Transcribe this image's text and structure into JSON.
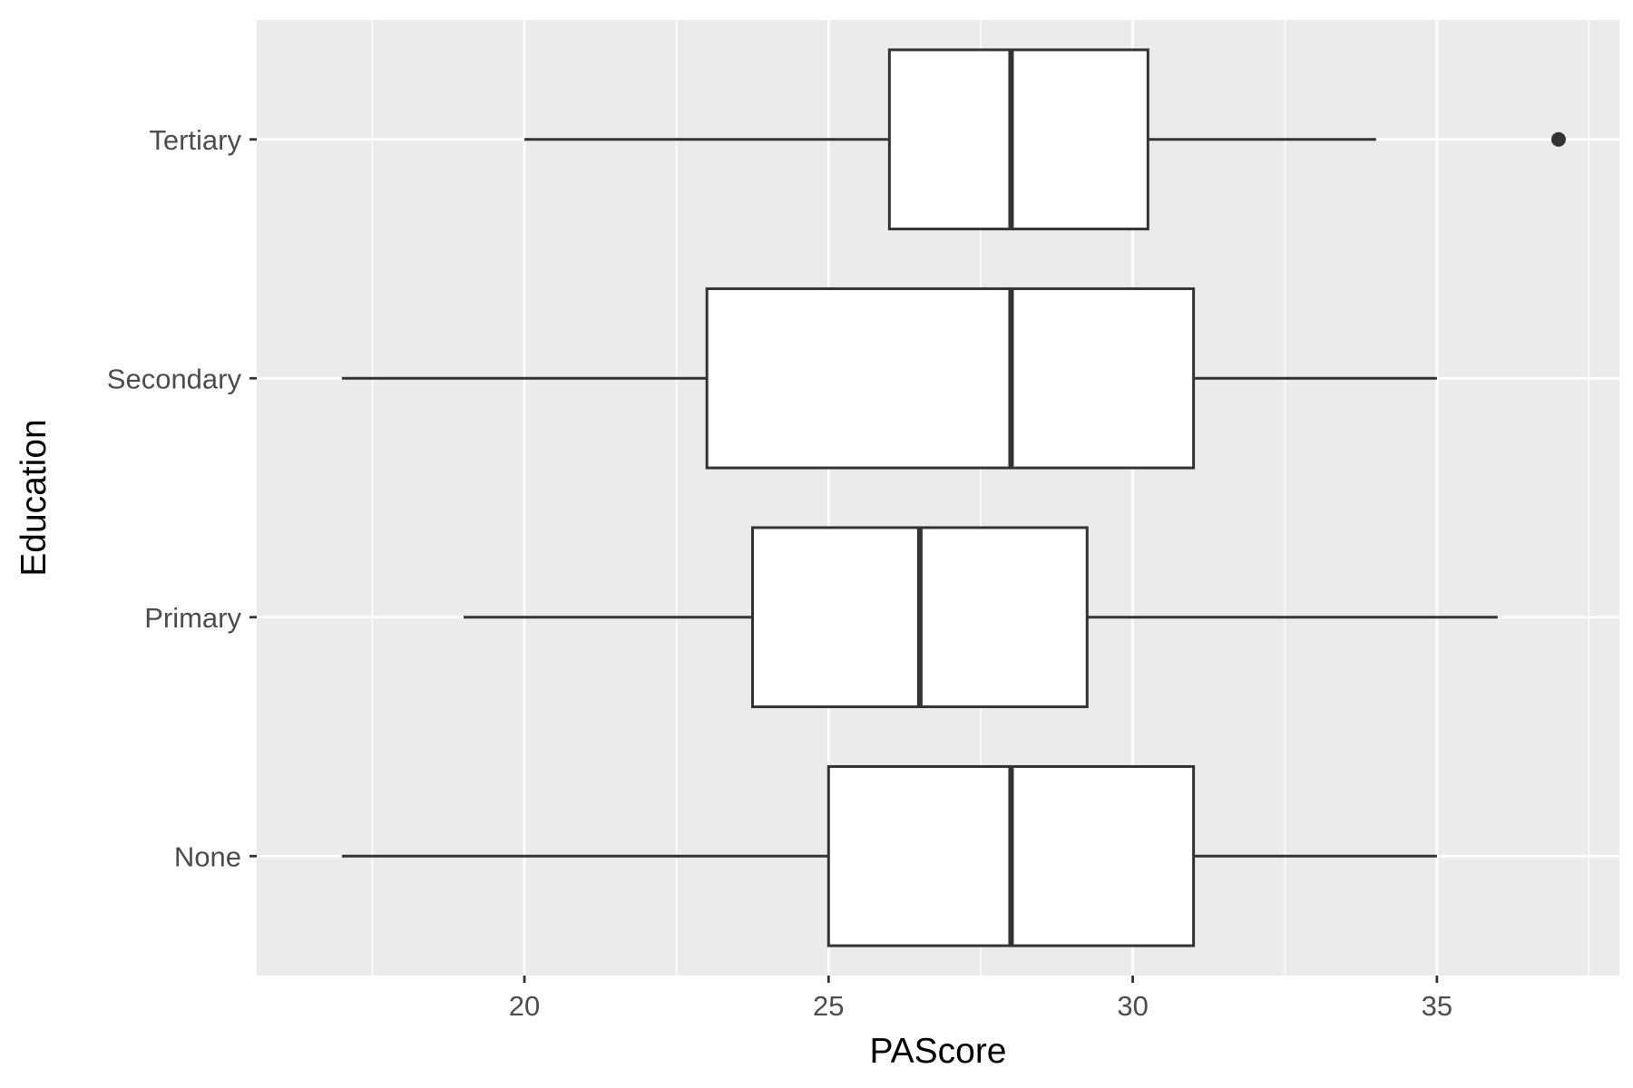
{
  "chart_data": {
    "type": "boxplot",
    "orientation": "horizontal",
    "title": "",
    "xlabel": "PAScore",
    "ylabel": "Education",
    "xlim": [
      15.6,
      38.0
    ],
    "x_ticks": [
      20,
      25,
      30,
      35
    ],
    "x_tick_labels": [
      "20",
      "25",
      "30",
      "35"
    ],
    "x_minor_ticks": [
      17.5,
      22.5,
      27.5,
      32.5,
      37.5
    ],
    "categories": [
      "None",
      "Primary",
      "Secondary",
      "Tertiary"
    ],
    "boxes": [
      {
        "category": "None",
        "whisker_low": 17,
        "q1": 25,
        "median": 28,
        "q3": 31,
        "whisker_high": 35,
        "outliers": []
      },
      {
        "category": "Primary",
        "whisker_low": 19,
        "q1": 23.75,
        "median": 26.5,
        "q3": 29.25,
        "whisker_high": 36,
        "outliers": []
      },
      {
        "category": "Secondary",
        "whisker_low": 17,
        "q1": 23,
        "median": 28,
        "q3": 31,
        "whisker_high": 35,
        "outliers": []
      },
      {
        "category": "Tertiary",
        "whisker_low": 20,
        "q1": 26,
        "median": 28,
        "q3": 30.25,
        "whisker_high": 34,
        "outliers": [
          37
        ]
      }
    ],
    "grid": true,
    "colors": {
      "panel_background": "#ebebeb",
      "grid": "#ffffff",
      "box_fill": "#ffffff",
      "box_stroke": "#333333",
      "tick_text": "#4d4d4d",
      "axis_title": "#000000"
    }
  }
}
